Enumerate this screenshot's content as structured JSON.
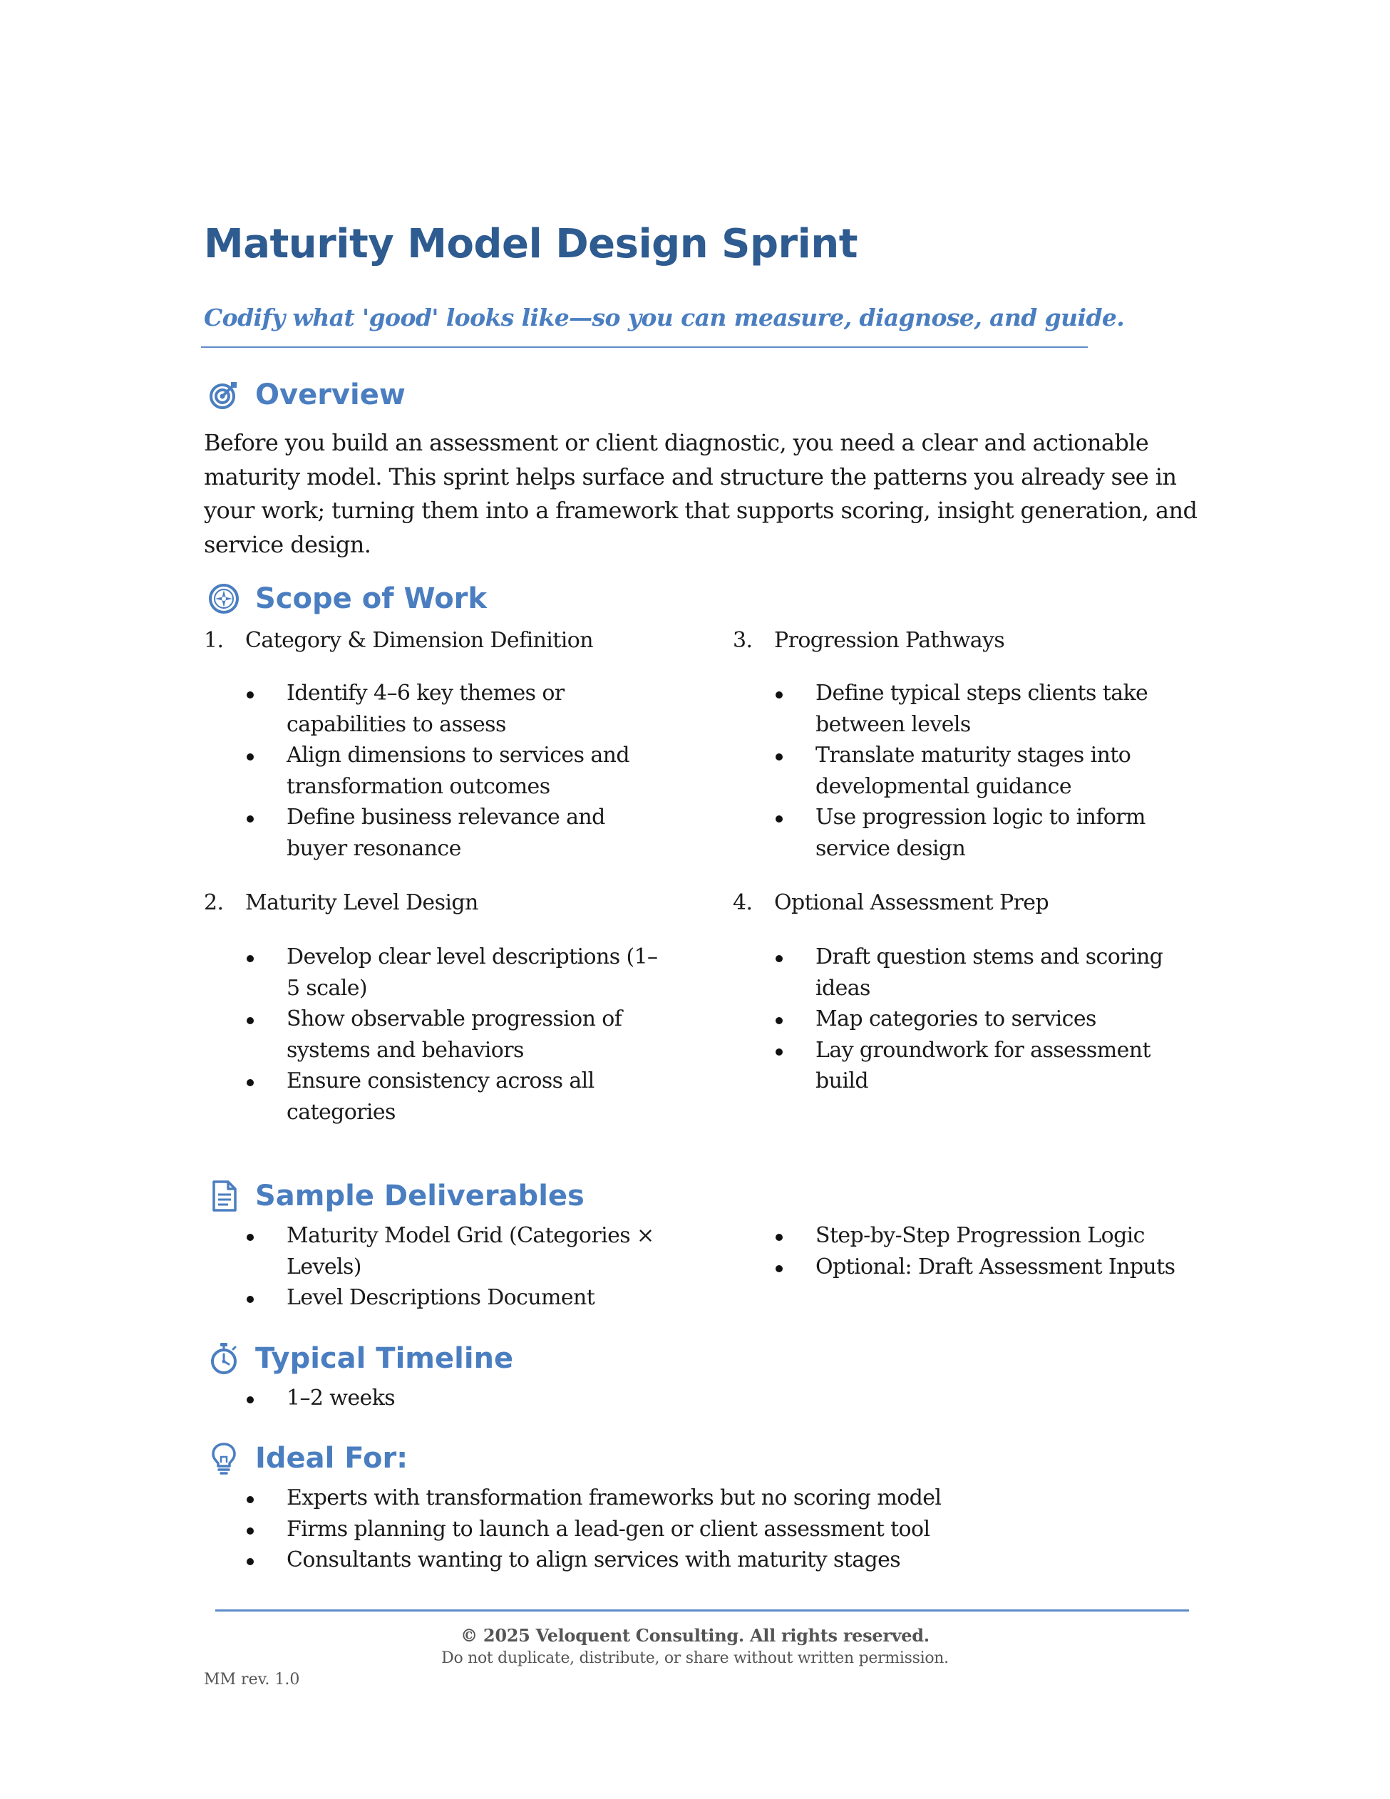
{
  "header": {
    "title": "Maturity Model Design Sprint",
    "subtitle": "Codify what 'good' looks like—so you can measure, diagnose, and guide."
  },
  "overview": {
    "heading": "Overview",
    "icon": "target-icon",
    "body": "Before you build an assessment or client diagnostic, you need a clear and actionable maturity model. This sprint helps surface and structure the patterns you already see in your work; turning them into a framework that supports scoring, insight generation, and service design."
  },
  "scope": {
    "heading": "Scope of Work",
    "icon": "compass-icon",
    "items": [
      {
        "num": "1.",
        "title": "Category & Dimension Definition",
        "bullets": [
          "Identify 4–6 key themes or capabilities to assess",
          "Align dimensions to services and transformation outcomes",
          "Define business relevance and buyer resonance"
        ]
      },
      {
        "num": "2.",
        "title": "Maturity Level Design",
        "bullets": [
          "Develop clear level descriptions (1–5 scale)",
          "Show observable progression of systems and behaviors",
          "Ensure consistency across all categories"
        ]
      },
      {
        "num": "3.",
        "title": "Progression Pathways",
        "bullets": [
          "Define typical steps clients take between levels",
          "Translate maturity stages into developmental guidance",
          "Use progression logic to inform service design"
        ]
      },
      {
        "num": "4.",
        "title": "Optional Assessment Prep",
        "bullets": [
          "Draft question stems and scoring ideas",
          "Map categories to services",
          "Lay groundwork for assessment build"
        ]
      }
    ]
  },
  "deliverables": {
    "heading": "Sample Deliverables",
    "icon": "document-icon",
    "left": [
      "Maturity Model Grid (Categories × Levels)",
      "Level Descriptions Document"
    ],
    "right": [
      "Step-by-Step Progression Logic",
      "Optional: Draft Assessment Inputs"
    ]
  },
  "timeline": {
    "heading": "Typical Timeline",
    "icon": "stopwatch-icon",
    "items": [
      "1–2 weeks"
    ]
  },
  "ideal": {
    "heading": "Ideal For:",
    "icon": "lightbulb-icon",
    "items": [
      "Experts with transformation frameworks but no scoring model",
      "Firms planning to launch a lead-gen or client assessment tool",
      "Consultants wanting to align services with maturity stages"
    ]
  },
  "footer": {
    "copyright": "© 2025 Veloquent Consulting. All rights reserved.",
    "notice": "Do not duplicate, distribute, or share without written permission.",
    "revision": "MM rev. 1.0"
  },
  "colors": {
    "title": "#2e5b90",
    "accent": "#4a7ec0",
    "rule": "#5b8bc9",
    "footer_text": "#555555"
  }
}
